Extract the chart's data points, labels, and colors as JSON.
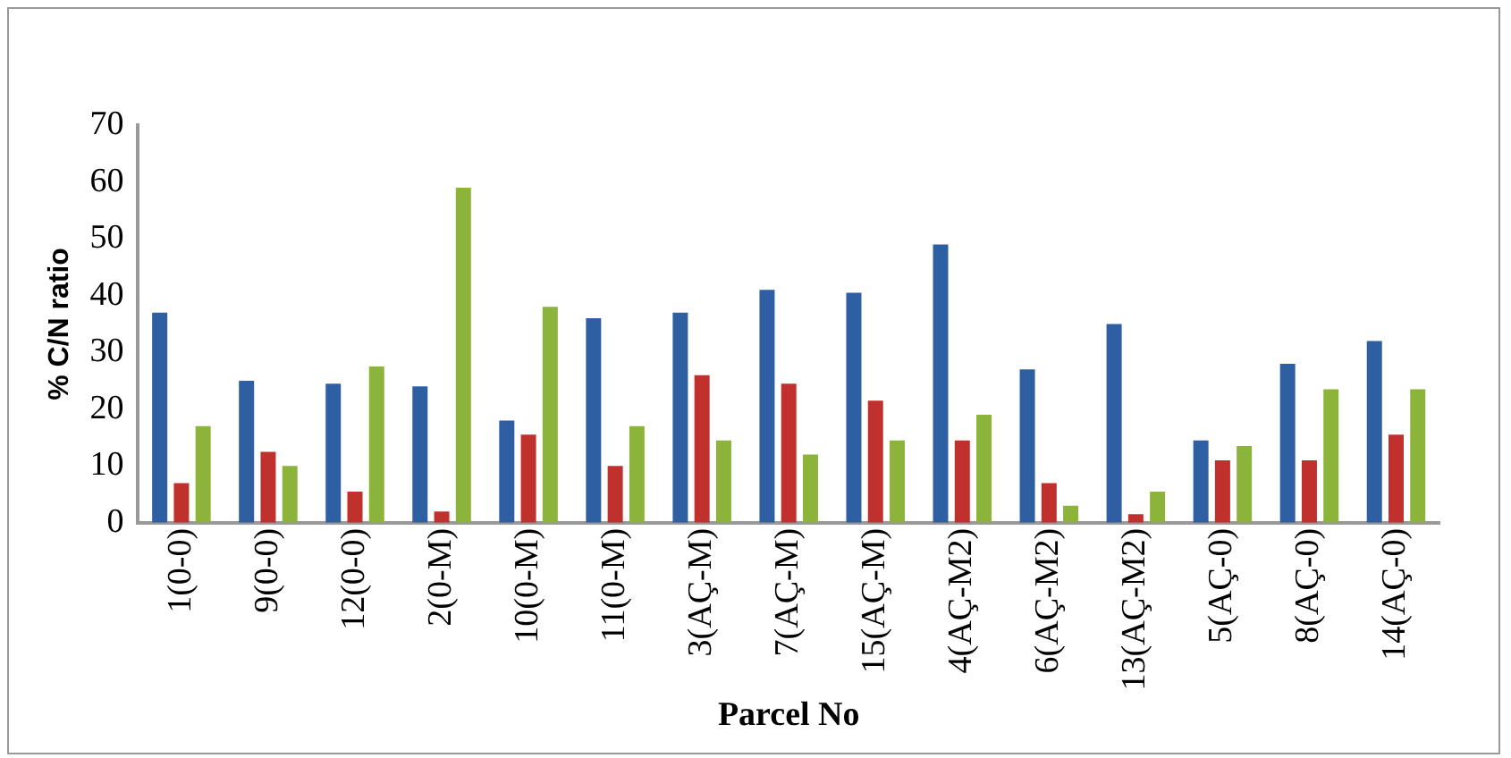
{
  "chart_data": {
    "type": "bar",
    "xlabel": "Parcel No",
    "ylabel": "% C/N ratio",
    "categories": [
      "1(0-0)",
      "9(0-0)",
      "12(0-0)",
      "2(0-M)",
      "10(0-M)",
      "11(0-M)",
      "3(AÇ-M)",
      "7(AÇ-M)",
      "15(AÇ-M)",
      "4(AÇ-M2)",
      "6(AÇ-M2)",
      "13(AÇ-M2)",
      "5(AÇ-0)",
      "8(AÇ-0)",
      "14(AÇ-0)"
    ],
    "series": [
      {
        "color": "#2e5fa3",
        "values": [
          37,
          25,
          24.5,
          24,
          18,
          36,
          37,
          41,
          40.5,
          49,
          27,
          35,
          14.5,
          28,
          32
        ]
      },
      {
        "color": "#c0302c",
        "values": [
          7,
          12.5,
          5.5,
          2,
          15.5,
          10,
          26,
          24.5,
          21.5,
          14.5,
          7,
          1.5,
          11,
          11,
          15.5
        ]
      },
      {
        "color": "#8cb33a",
        "values": [
          17,
          10,
          27.5,
          59,
          38,
          17,
          14.5,
          12,
          14.5,
          19,
          3,
          5.5,
          13.5,
          23.5,
          23.5
        ]
      }
    ],
    "ylim": [
      0,
      70
    ],
    "yticks": [
      0,
      10,
      20,
      30,
      40,
      50,
      60,
      70
    ],
    "grid": false,
    "legend": false
  }
}
